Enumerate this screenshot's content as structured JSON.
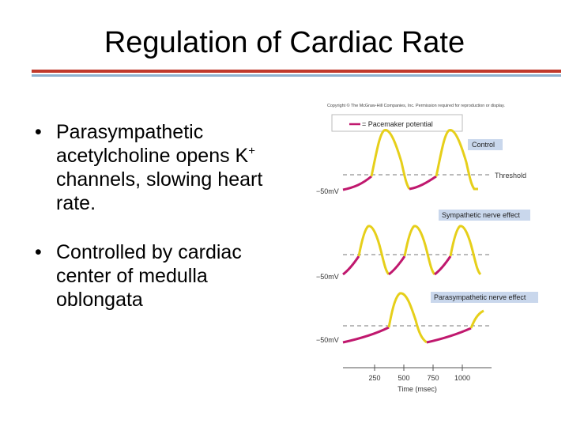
{
  "slide": {
    "title": "Regulation of Cardiac Rate"
  },
  "bullets": [
    {
      "text_before_sup": "Parasympathetic acetylcholine opens K",
      "sup": "+",
      "text_after_sup": " channels, slowing heart rate."
    },
    {
      "text": "Controlled by cardiac center of medulla oblongata"
    }
  ],
  "figure": {
    "copyright": "Copyright © The McGraw-Hill Companies, Inc. Permission required for reproduction or display.",
    "legend_label": "= Pacemaker potential",
    "panels": [
      {
        "label": "Control",
        "voltage_label": "−50mV",
        "threshold_label": "Threshold"
      },
      {
        "label": "Sympathetic nerve effect",
        "voltage_label": "−50mV"
      },
      {
        "label": "Parasympathetic nerve effect",
        "voltage_label": "−50mV"
      }
    ],
    "time_axis": {
      "title": "Time (msec)",
      "ticks": [
        "250",
        "500",
        "750",
        "1000"
      ]
    },
    "colors": {
      "pacemaker": "#c0186e",
      "action_potential": "#e6cf1a",
      "label_box": "#c9d7ec",
      "threshold": "#777777"
    }
  }
}
